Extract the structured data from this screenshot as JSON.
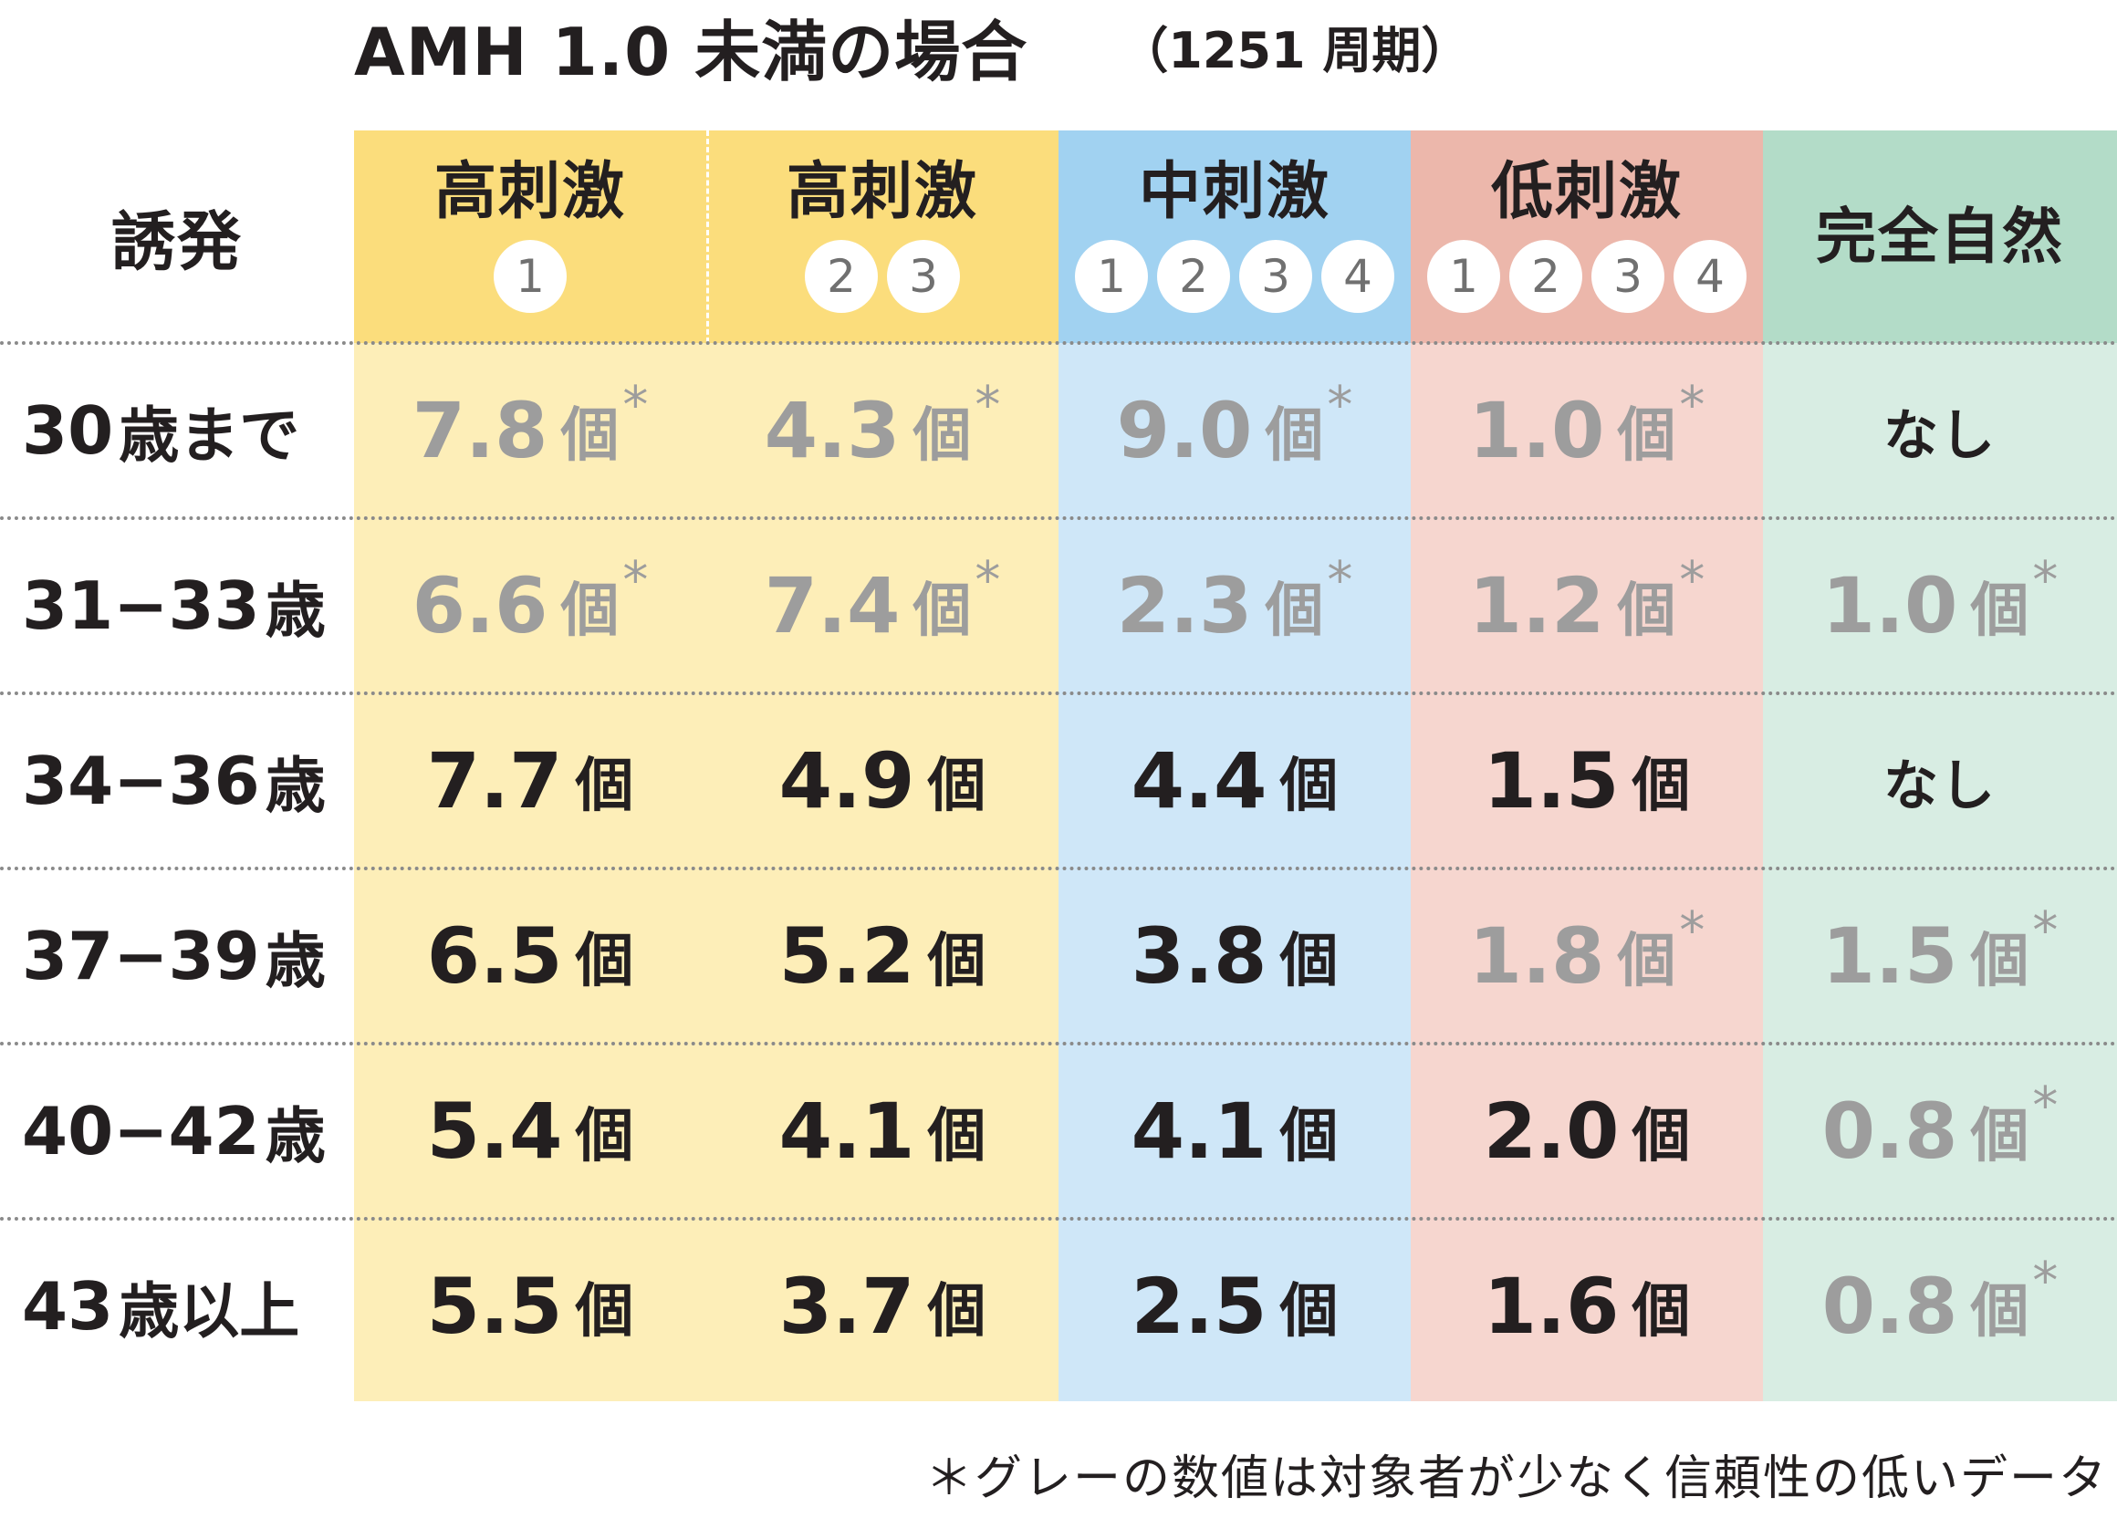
{
  "title": "AMH 1.0 未満の場合",
  "subtitle": "（1251 周期）",
  "corner_label": "誘発",
  "footnote": "＊グレーの数値は対象者が少なく信頼性の低いデータ",
  "colors": {
    "col1": "#fdeeb8",
    "col1_head": "#fbdd7c",
    "col2": "#fdeeb8",
    "col2_head": "#fbdd7c",
    "col3": "#cfe7f8",
    "col3_head": "#a1d2f1",
    "col4": "#f6d6cf",
    "col4_head": "#ecb7ab",
    "col5": "#d8ede3",
    "col5_head": "#b3dcc8",
    "grey_text": "#9d9d9d"
  },
  "columns": [
    {
      "label": "高刺激",
      "badges": [
        "1"
      ]
    },
    {
      "label": "高刺激",
      "badges": [
        "2",
        "3"
      ]
    },
    {
      "label": "中刺激",
      "badges": [
        "1",
        "2",
        "3",
        "4"
      ]
    },
    {
      "label": "低刺激",
      "badges": [
        "1",
        "2",
        "3",
        "4"
      ]
    },
    {
      "label": "完全自然",
      "badges": []
    }
  ],
  "chart_data": {
    "type": "table",
    "title": "AMH 1.0 未満の場合",
    "subtitle": "（1251 周期）",
    "unit": "個",
    "none_label": "なし",
    "star": "*",
    "rows": [
      {
        "age_num": "30",
        "age_kanji": "歳まで",
        "cells": [
          {
            "value": "7.8",
            "grey": true
          },
          {
            "value": "4.3",
            "grey": true
          },
          {
            "value": "9.0",
            "grey": true
          },
          {
            "value": "1.0",
            "grey": true
          },
          {
            "value": null,
            "grey": false
          }
        ]
      },
      {
        "age_num": "31−33",
        "age_kanji": "歳",
        "cells": [
          {
            "value": "6.6",
            "grey": true
          },
          {
            "value": "7.4",
            "grey": true
          },
          {
            "value": "2.3",
            "grey": true
          },
          {
            "value": "1.2",
            "grey": true
          },
          {
            "value": "1.0",
            "grey": true
          }
        ]
      },
      {
        "age_num": "34−36",
        "age_kanji": "歳",
        "cells": [
          {
            "value": "7.7",
            "grey": false
          },
          {
            "value": "4.9",
            "grey": false
          },
          {
            "value": "4.4",
            "grey": false
          },
          {
            "value": "1.5",
            "grey": false
          },
          {
            "value": null,
            "grey": false
          }
        ]
      },
      {
        "age_num": "37−39",
        "age_kanji": "歳",
        "cells": [
          {
            "value": "6.5",
            "grey": false
          },
          {
            "value": "5.2",
            "grey": false
          },
          {
            "value": "3.8",
            "grey": false
          },
          {
            "value": "1.8",
            "grey": true
          },
          {
            "value": "1.5",
            "grey": true
          }
        ]
      },
      {
        "age_num": "40−42",
        "age_kanji": "歳",
        "cells": [
          {
            "value": "5.4",
            "grey": false
          },
          {
            "value": "4.1",
            "grey": false
          },
          {
            "value": "4.1",
            "grey": false
          },
          {
            "value": "2.0",
            "grey": false
          },
          {
            "value": "0.8",
            "grey": true
          }
        ]
      },
      {
        "age_num": "43",
        "age_kanji": "歳以上",
        "cells": [
          {
            "value": "5.5",
            "grey": false
          },
          {
            "value": "3.7",
            "grey": false
          },
          {
            "value": "2.5",
            "grey": false
          },
          {
            "value": "1.6",
            "grey": false
          },
          {
            "value": "0.8",
            "grey": true
          }
        ]
      }
    ]
  }
}
